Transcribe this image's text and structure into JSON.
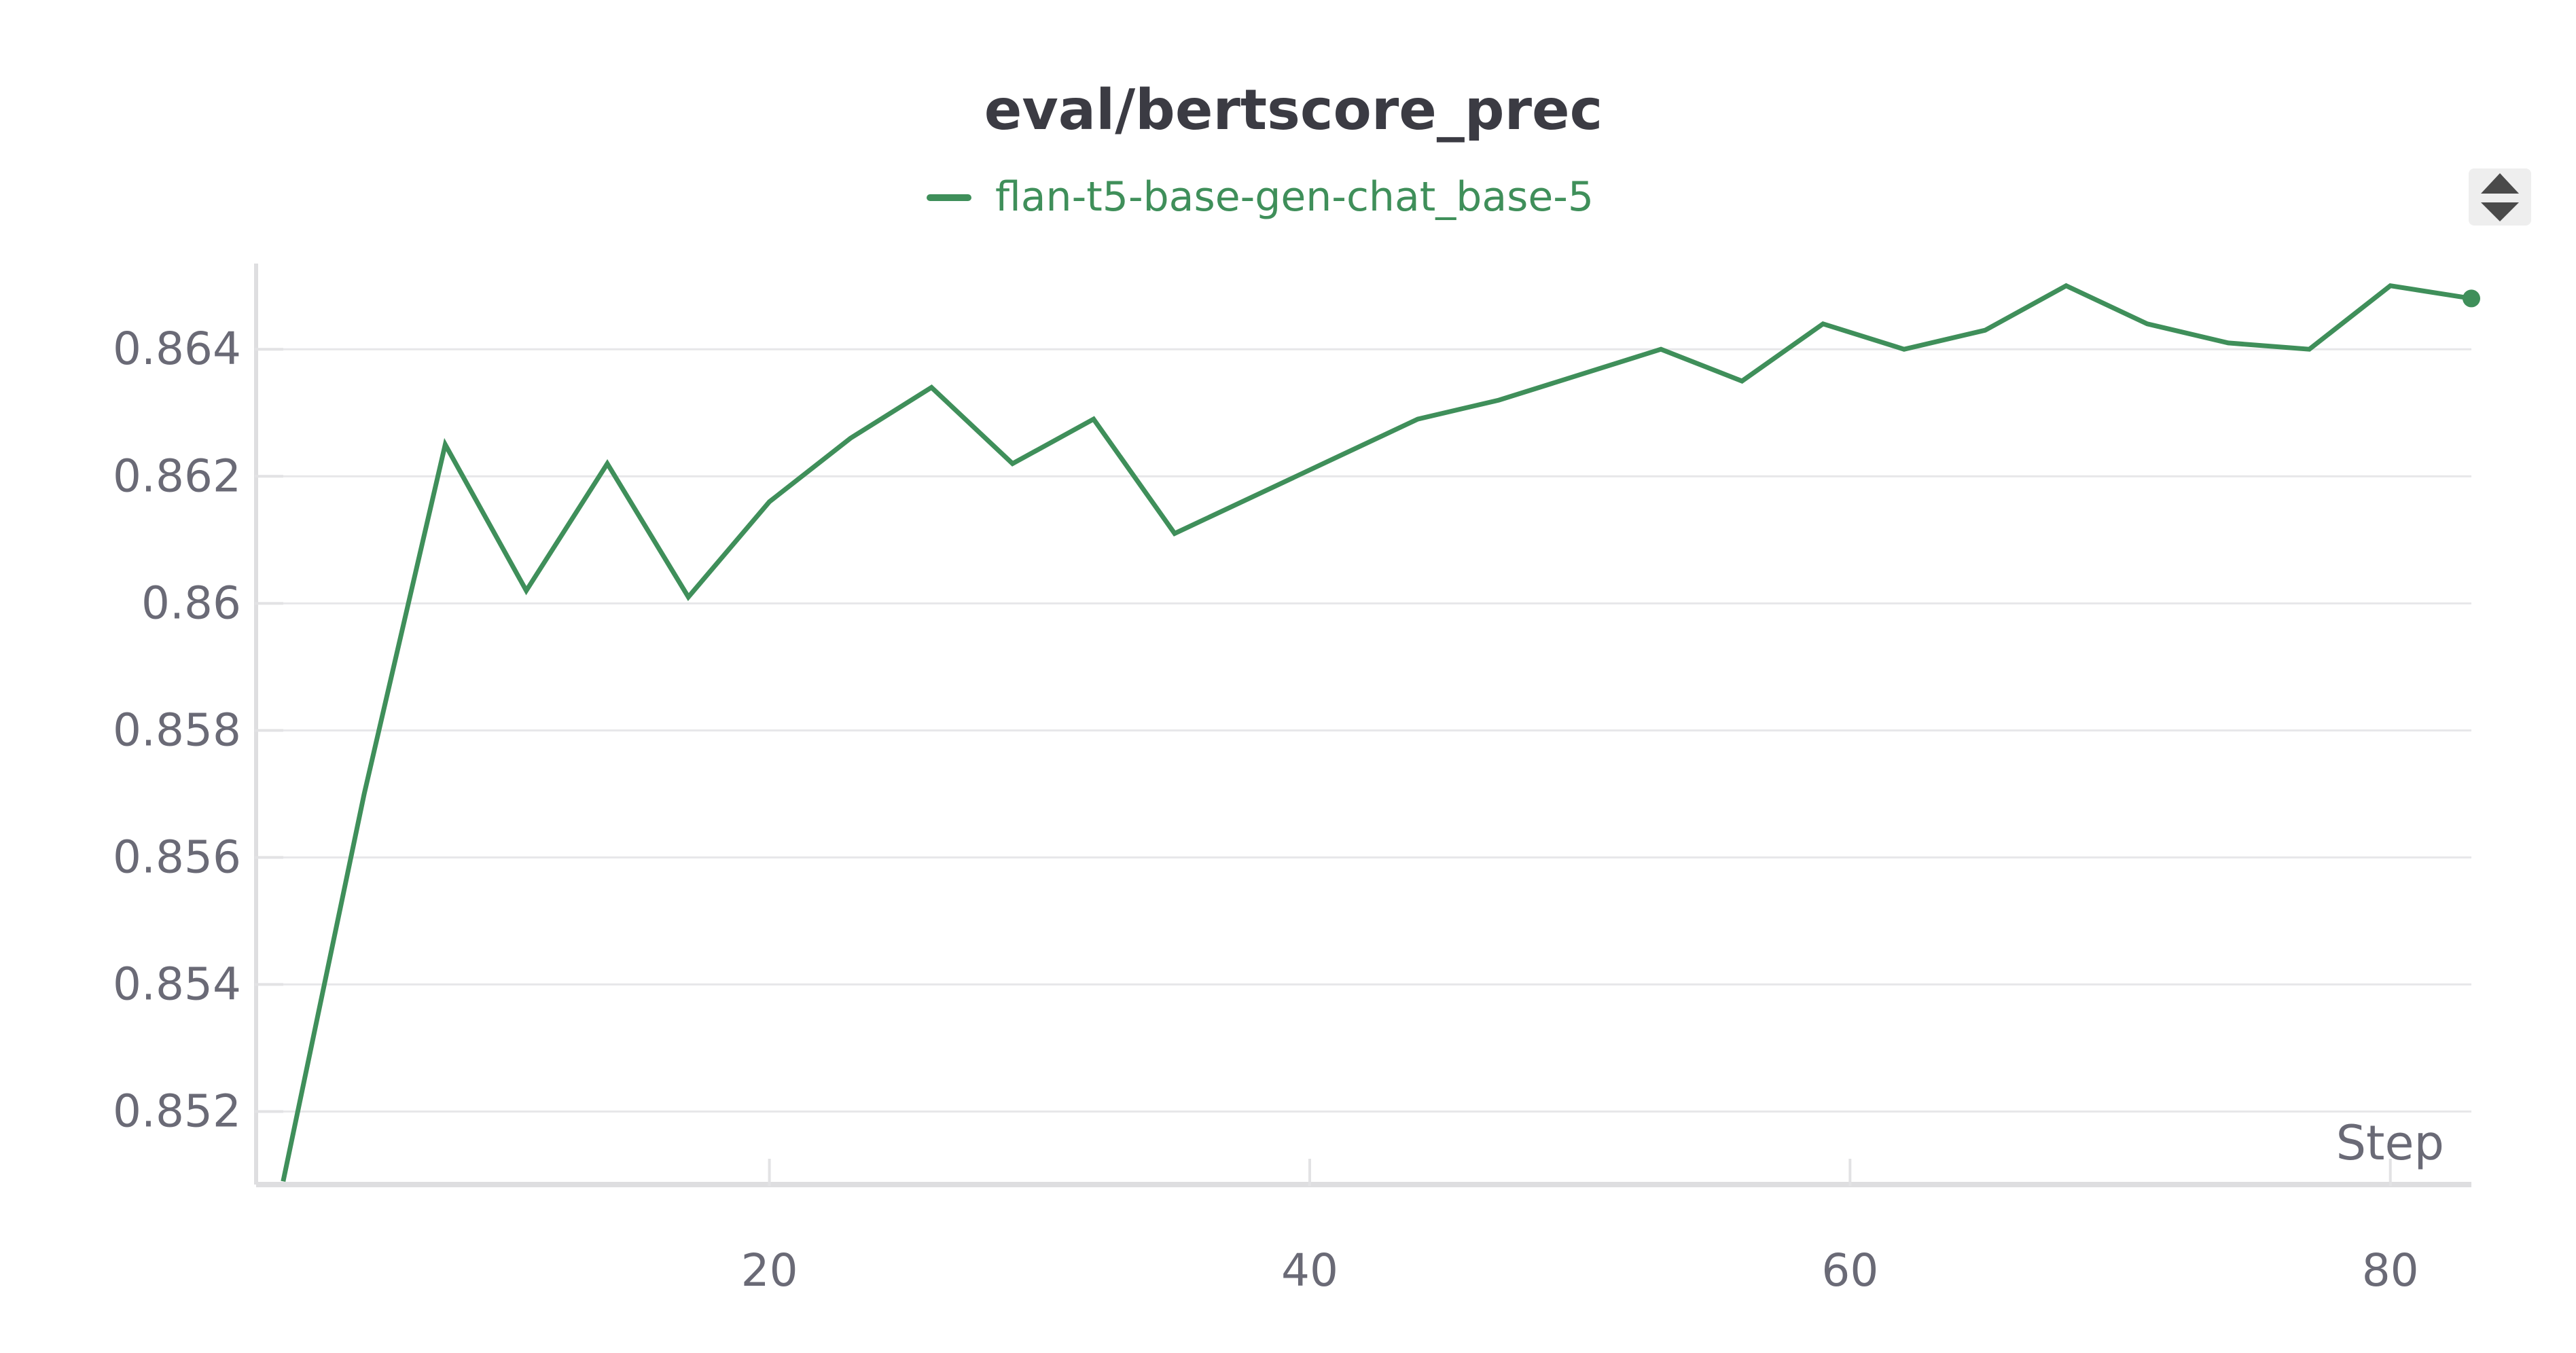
{
  "chart_data": {
    "type": "line",
    "title": "eval/bertscore_prec",
    "xlabel": "Step",
    "ylabel": "",
    "xlim": [
      1,
      83
    ],
    "ylim": [
      0.85085,
      0.86535
    ],
    "x_ticks": [
      20,
      40,
      60,
      80
    ],
    "x_tick_labels": [
      "20",
      "40",
      "60",
      "80"
    ],
    "y_ticks": [
      0.852,
      0.854,
      0.856,
      0.858,
      0.86,
      0.862,
      0.864
    ],
    "y_tick_labels": [
      "0.852",
      "0.854",
      "0.856",
      "0.858",
      "0.86",
      "0.862",
      "0.864"
    ],
    "grid": true,
    "legend_position": "top-center",
    "series": [
      {
        "name": "flan-t5-base-gen-chat_base-5",
        "color": "#3f8f5a",
        "x": [
          2,
          5,
          8,
          11,
          14,
          17,
          20,
          23,
          26,
          29,
          32,
          35,
          38,
          41,
          44,
          47,
          50,
          53,
          56,
          59,
          62,
          65,
          68,
          71,
          74,
          77,
          80,
          83
        ],
        "y": [
          0.8509,
          0.857,
          0.8625,
          0.8602,
          0.8622,
          0.8601,
          0.8616,
          0.8626,
          0.8634,
          0.8622,
          0.8629,
          0.8611,
          0.8617,
          0.8623,
          0.8629,
          0.8632,
          0.8636,
          0.864,
          0.8635,
          0.8644,
          0.864,
          0.8643,
          0.865,
          0.8644,
          0.8641,
          0.864,
          0.865,
          0.8648
        ]
      }
    ]
  }
}
